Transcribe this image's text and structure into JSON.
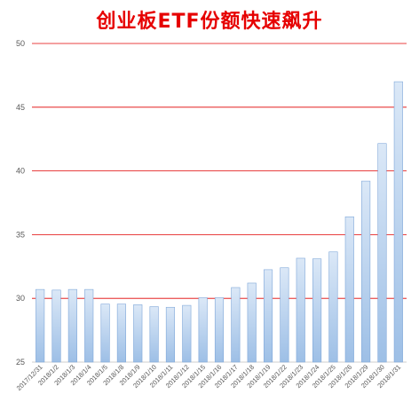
{
  "chart_data": {
    "type": "bar",
    "title": "创业板ETF份额快速飙升",
    "categories": [
      "2017/12/31",
      "2018/1/2",
      "2018/1/3",
      "2018/1/4",
      "2018/1/5",
      "2018/1/8",
      "2018/1/9",
      "2018/1/10",
      "2018/1/11",
      "2018/1/12",
      "2018/1/15",
      "2018/1/16",
      "2018/1/17",
      "2018/1/18",
      "2018/1/19",
      "2018/1/22",
      "2018/1/23",
      "2018/1/24",
      "2018/1/25",
      "2018/1/26",
      "2018/1/29",
      "2018/1/30",
      "2018/1/31"
    ],
    "values": [
      30.7,
      30.65,
      30.7,
      30.7,
      29.55,
      29.55,
      29.5,
      29.35,
      29.3,
      29.45,
      30.05,
      30.05,
      30.85,
      31.2,
      32.25,
      32.4,
      33.15,
      33.1,
      33.65,
      36.4,
      39.2,
      42.15,
      47.0
    ],
    "ylim": [
      25,
      50
    ],
    "yticks": [
      25,
      30,
      35,
      40,
      45,
      50
    ],
    "xlabel": "",
    "ylabel": "",
    "grid": true,
    "gridline_color": "#e00000",
    "bar_color_top": "#dbe8f7",
    "bar_color_bottom": "#9dbfe6",
    "bar_edge_color": "#7fa7d9",
    "title_color": "#e60000"
  }
}
